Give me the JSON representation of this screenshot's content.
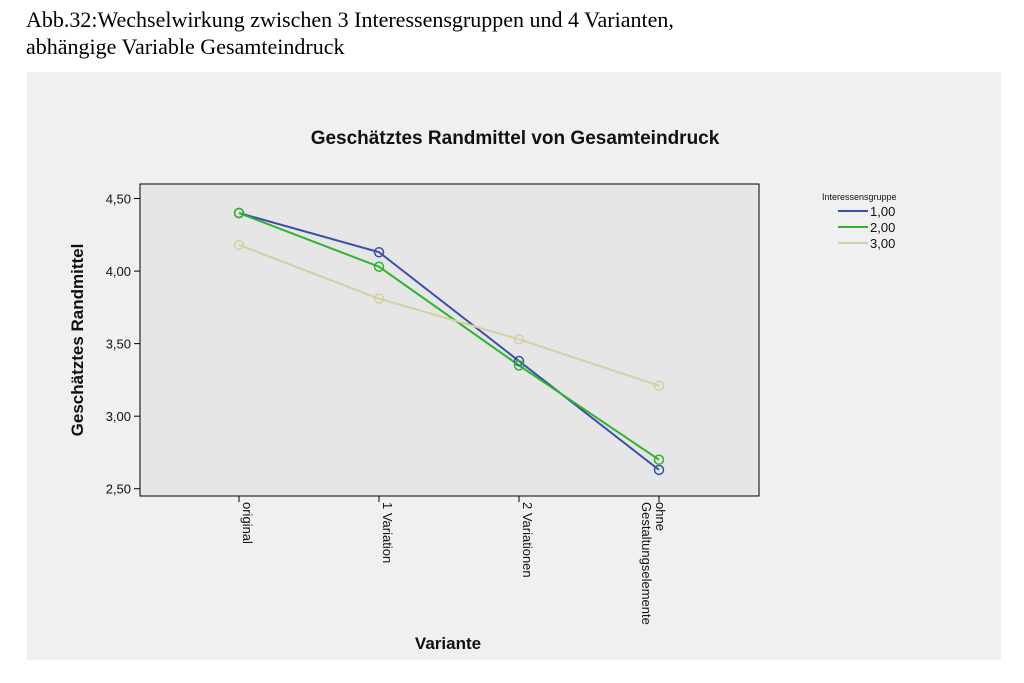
{
  "caption": {
    "line1": "Abb.32:Wechselwirkung zwischen 3 Interessensgruppen und 4 Varianten,",
    "line2": "abhängige Variable Gesamteindruck"
  },
  "chart_data": {
    "type": "line",
    "title": "Geschätztes Randmittel von Gesamteindruck",
    "xlabel": "Variante",
    "ylabel": "Geschätztes Randmittel",
    "categories": [
      "original",
      "1 Variation",
      "2 Variationen",
      "ohne Gestaltungselemente"
    ],
    "category_label_lines": [
      [
        "original"
      ],
      [
        "1 Variation"
      ],
      [
        "2 Variationen"
      ],
      [
        "ohne",
        "Gestaltungselemente"
      ]
    ],
    "ylim": [
      2.45,
      4.6
    ],
    "yticks": [
      2.5,
      3.0,
      3.5,
      4.0,
      4.5
    ],
    "ytick_labels": [
      "2,50",
      "3,00",
      "3,50",
      "4,00",
      "4,50"
    ],
    "grid": false,
    "legend": {
      "title": "Interessensgruppe",
      "position": "right"
    },
    "series": [
      {
        "name": "1,00",
        "color": "#3c4fa8",
        "values": [
          4.4,
          4.13,
          3.38,
          2.63
        ]
      },
      {
        "name": "2,00",
        "color": "#2db52d",
        "values": [
          4.4,
          4.03,
          3.35,
          2.7
        ]
      },
      {
        "name": "3,00",
        "color": "#d4d0a0",
        "values": [
          4.18,
          3.81,
          3.53,
          3.21
        ]
      }
    ]
  }
}
